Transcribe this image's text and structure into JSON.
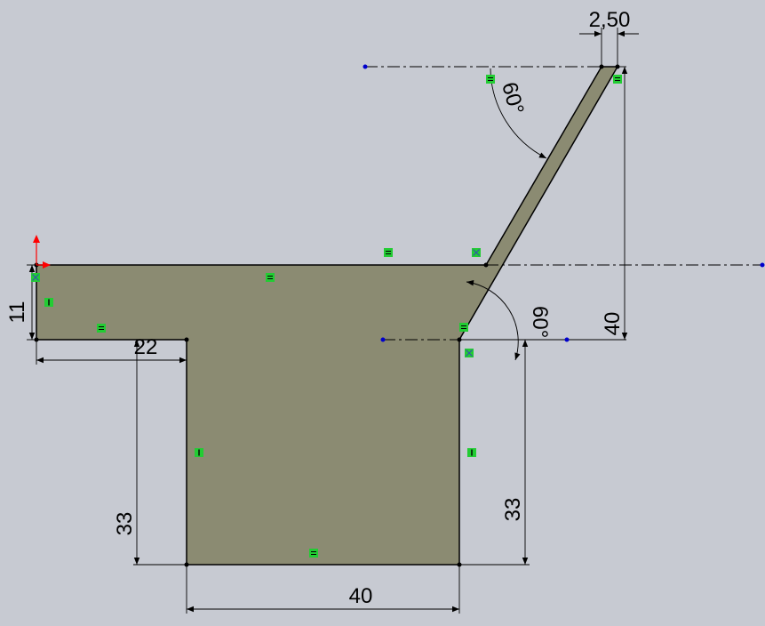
{
  "sketch": {
    "profile_fill": "#8b8b72",
    "background": "#c7cad2",
    "relation_color": "#22cc33",
    "point_color": "#0000cc",
    "origin_x_color": "#ff0000",
    "origin_y_color": "#ff0000"
  },
  "dimensions": {
    "thickness": "2,50",
    "angle_top": "60°",
    "angle_bottom": "60°",
    "height_right": "40",
    "left_height": "11",
    "left_width": "22",
    "leg_left_height": "33",
    "leg_right_height": "33",
    "leg_width": "40"
  },
  "relations": {
    "horizontal": "horizontal-relation-icon",
    "vertical": "vertical-relation-icon",
    "coincident": "coincident-relation-icon"
  }
}
